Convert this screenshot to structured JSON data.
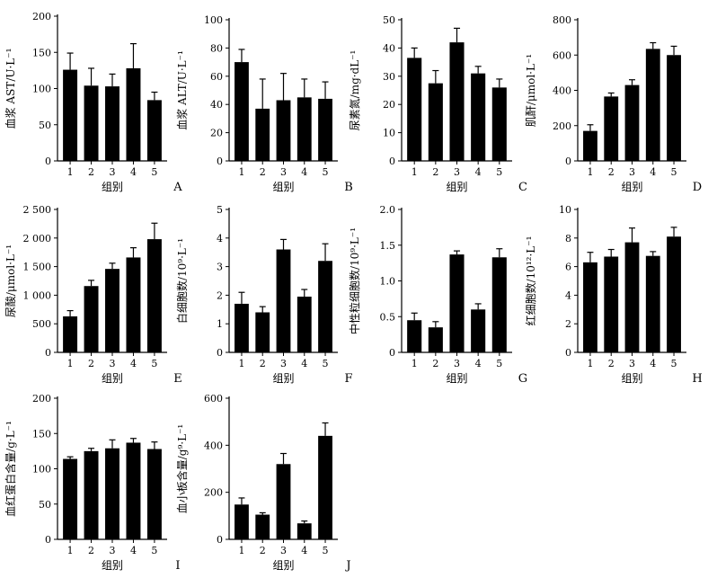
{
  "figure": {
    "background": "#ffffff",
    "bar_color": "#000000"
  },
  "chart_data": [
    {
      "panel": "A",
      "type": "bar",
      "ylabel": "血浆 AST/U·L⁻¹",
      "xlabel": "组别",
      "categories": [
        "1",
        "2",
        "3",
        "4",
        "5"
      ],
      "values": [
        126,
        104,
        103,
        128,
        84
      ],
      "errors": [
        23,
        24,
        17,
        34,
        11
      ],
      "ylim": [
        0,
        200
      ],
      "yticks": [
        "0",
        "50",
        "100",
        "150",
        "200"
      ]
    },
    {
      "panel": "B",
      "type": "bar",
      "ylabel": "血浆 ALT/U·L⁻¹",
      "xlabel": "组别",
      "categories": [
        "1",
        "2",
        "3",
        "4",
        "5"
      ],
      "values": [
        70,
        37,
        43,
        45,
        44
      ],
      "errors": [
        9,
        21,
        19,
        13,
        12
      ],
      "ylim": [
        0,
        100
      ],
      "yticks": [
        "0",
        "20",
        "40",
        "60",
        "80",
        "100"
      ]
    },
    {
      "panel": "C",
      "type": "bar",
      "ylabel": "尿素氮/mg·dL⁻¹",
      "xlabel": "组别",
      "categories": [
        "1",
        "2",
        "3",
        "4",
        "5"
      ],
      "values": [
        36.5,
        27.5,
        42,
        31,
        26
      ],
      "errors": [
        3.5,
        4.5,
        5,
        2.5,
        3
      ],
      "ylim": [
        0,
        50
      ],
      "yticks": [
        "0",
        "10",
        "20",
        "30",
        "40",
        "50"
      ]
    },
    {
      "panel": "D",
      "type": "bar",
      "ylabel": "肌酐/μmol·L⁻¹",
      "xlabel": "组别",
      "categories": [
        "1",
        "2",
        "3",
        "4",
        "5"
      ],
      "values": [
        170,
        365,
        430,
        635,
        600
      ],
      "errors": [
        35,
        20,
        30,
        35,
        50
      ],
      "ylim": [
        0,
        800
      ],
      "yticks": [
        "0",
        "200",
        "400",
        "600",
        "800"
      ]
    },
    {
      "panel": "E",
      "type": "bar",
      "ylabel": "尿酸/μmol·L⁻¹",
      "xlabel": "组别",
      "categories": [
        "1",
        "2",
        "3",
        "4",
        "5"
      ],
      "values": [
        630,
        1160,
        1460,
        1660,
        1980
      ],
      "errors": [
        100,
        100,
        100,
        170,
        280
      ],
      "ylim": [
        0,
        2500
      ],
      "yticks": [
        "0",
        "500",
        "1 000",
        "1 500",
        "2 000",
        "2 500"
      ]
    },
    {
      "panel": "F",
      "type": "bar",
      "ylabel": "白细胞数/10⁹·L⁻¹",
      "xlabel": "组别",
      "categories": [
        "1",
        "2",
        "3",
        "4",
        "5"
      ],
      "values": [
        1.7,
        1.4,
        3.6,
        1.95,
        3.2
      ],
      "errors": [
        0.4,
        0.2,
        0.35,
        0.25,
        0.6
      ],
      "ylim": [
        0,
        5
      ],
      "yticks": [
        "0",
        "1",
        "2",
        "3",
        "4",
        "5"
      ]
    },
    {
      "panel": "G",
      "type": "bar",
      "ylabel": "中性粒细胞数/10⁹·L⁻¹",
      "xlabel": "组别",
      "categories": [
        "1",
        "2",
        "3",
        "4",
        "5"
      ],
      "values": [
        0.45,
        0.35,
        1.37,
        0.6,
        1.33
      ],
      "errors": [
        0.1,
        0.08,
        0.05,
        0.08,
        0.12
      ],
      "ylim": [
        0,
        2.0
      ],
      "yticks": [
        "0",
        "0.5",
        "1.0",
        "1.5",
        "2.0"
      ]
    },
    {
      "panel": "H",
      "type": "bar",
      "ylabel": "红细胞数/10¹²·L⁻¹",
      "xlabel": "组别",
      "categories": [
        "1",
        "2",
        "3",
        "4",
        "5"
      ],
      "values": [
        6.3,
        6.7,
        7.7,
        6.75,
        8.1
      ],
      "errors": [
        0.7,
        0.5,
        1.0,
        0.3,
        0.65
      ],
      "ylim": [
        0,
        10
      ],
      "yticks": [
        "0",
        "2",
        "4",
        "6",
        "8",
        "10"
      ]
    },
    {
      "panel": "I",
      "type": "bar",
      "ylabel": "血红蛋白含量/g·L⁻¹",
      "xlabel": "组别",
      "categories": [
        "1",
        "2",
        "3",
        "4",
        "5"
      ],
      "values": [
        114,
        125,
        129,
        137,
        128
      ],
      "errors": [
        3,
        4,
        12,
        6,
        10
      ],
      "ylim": [
        0,
        200
      ],
      "yticks": [
        "0",
        "50",
        "100",
        "150",
        "200"
      ]
    },
    {
      "panel": "J",
      "type": "bar",
      "ylabel": "血小板含量/g⁹·L⁻¹",
      "xlabel": "组别",
      "categories": [
        "1",
        "2",
        "3",
        "4",
        "5"
      ],
      "values": [
        148,
        105,
        320,
        68,
        440
      ],
      "errors": [
        28,
        8,
        45,
        10,
        55
      ],
      "ylim": [
        0,
        600
      ],
      "yticks": [
        "0",
        "200",
        "400",
        "600"
      ]
    }
  ]
}
